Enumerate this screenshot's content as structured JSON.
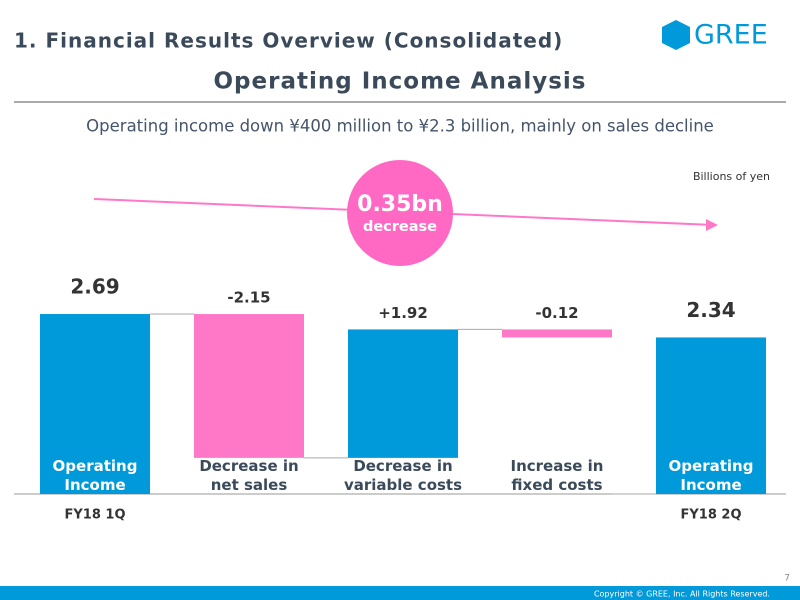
{
  "header": {
    "section": "1. Financial Results Overview (Consolidated)",
    "logo": "GREE",
    "page_number": "7",
    "copyright": "Copyright © GREE, Inc. All Rights Reserved."
  },
  "chart_data": {
    "type": "waterfall",
    "title": "Operating Income Analysis",
    "subtitle": "Operating income down ¥400 million to ¥2.3 billion, mainly on sales decline",
    "unit_label": "Billions of yen",
    "annotation": {
      "value": "0.35bn",
      "text": "decrease"
    },
    "categories": [
      "Operating\nIncome",
      "Decrease in\nnet sales",
      "Decrease in\nvariable costs",
      "Increase in\nfixed costs",
      "Operating\nIncome"
    ],
    "sublabels": [
      "FY18 1Q",
      null,
      null,
      null,
      "FY18 2Q"
    ],
    "values": [
      2.69,
      -2.15,
      1.92,
      -0.12,
      2.34
    ],
    "value_labels": [
      "2.69",
      "-2.15",
      "+1.92",
      "-0.12",
      "2.34"
    ],
    "is_total": [
      true,
      false,
      false,
      false,
      true
    ],
    "total_color": "#0099d9",
    "increase_color": "#0099d9",
    "decrease_color": "#ff78c8",
    "ylim": [
      0,
      3
    ]
  }
}
